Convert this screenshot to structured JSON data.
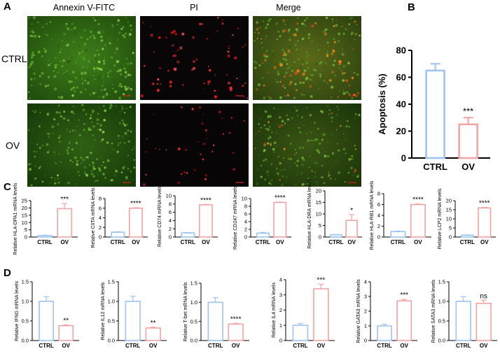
{
  "panel_labels": {
    "A": "A",
    "B": "B",
    "C": "C",
    "D": "D"
  },
  "micrographs": {
    "columns": [
      "Annexin V-FITC",
      "PI",
      "Merge"
    ],
    "rows": [
      "CTRL",
      "OV"
    ],
    "colors": {
      "green": "#2f6a12",
      "red": "#c8141e",
      "background": "#070707"
    }
  },
  "colors": {
    "ctrl": "#9cc3f2",
    "ov": "#f2a3a3",
    "axis": "#000000"
  },
  "chart_data": [
    {
      "id": "B",
      "type": "bar",
      "categories": [
        "CTRL",
        "OV"
      ],
      "values": [
        65,
        25
      ],
      "errors": [
        5,
        5
      ],
      "ylabel": "Apoptosis (%)",
      "ylim": [
        0,
        80
      ],
      "yticks": [
        0,
        20,
        40,
        60,
        80
      ],
      "significance": "***"
    },
    {
      "id": "C1",
      "type": "bar",
      "categories": [
        "CTRL",
        "OV"
      ],
      "values": [
        1,
        19.5
      ],
      "errors": [
        0.3,
        3.5
      ],
      "ylabel": "Relative HLA-DPA1 mRNA levels",
      "ylim": [
        0,
        25
      ],
      "yticks": [
        0,
        5,
        10,
        15,
        20,
        25
      ],
      "significance": "***"
    },
    {
      "id": "C2",
      "type": "bar",
      "categories": [
        "CTRL",
        "OV"
      ],
      "values": [
        1,
        6
      ],
      "errors": [
        0.1,
        0.1
      ],
      "ylabel": "Relative CIITA mRNA levels",
      "ylim": [
        0,
        8
      ],
      "yticks": [
        0,
        2,
        4,
        6,
        8
      ],
      "significance": "****"
    },
    {
      "id": "C3",
      "type": "bar",
      "categories": [
        "CTRL",
        "OV"
      ],
      "values": [
        1,
        7.8
      ],
      "errors": [
        0.1,
        0.1
      ],
      "ylabel": "Relative CD74 mRNA levels",
      "ylim": [
        0,
        10
      ],
      "yticks": [
        0,
        2,
        4,
        6,
        8,
        10
      ],
      "significance": "****"
    },
    {
      "id": "C4",
      "type": "bar",
      "categories": [
        "CTRL",
        "OV"
      ],
      "values": [
        1,
        9
      ],
      "errors": [
        0.2,
        0.1
      ],
      "ylabel": "Relative CD247 mRNA levels",
      "ylim": [
        0,
        10
      ],
      "yticks": [
        0,
        2,
        4,
        6,
        8,
        10
      ],
      "significance": "****"
    },
    {
      "id": "C5",
      "type": "bar",
      "categories": [
        "CTRL",
        "OV"
      ],
      "values": [
        1,
        7.2
      ],
      "errors": [
        0.1,
        2.5
      ],
      "ylabel": "Relative HLA-DRA mRNA levels",
      "ylim": [
        0,
        20
      ],
      "yticks": [
        0,
        5,
        10,
        15,
        20
      ],
      "significance": "*"
    },
    {
      "id": "C6",
      "type": "bar",
      "categories": [
        "CTRL",
        "OV"
      ],
      "values": [
        1,
        6
      ],
      "errors": [
        0.1,
        0.1
      ],
      "ylabel": "Relative HLA-RB1 mRNA levels",
      "ylim": [
        0,
        8
      ],
      "yticks": [
        0,
        2,
        4,
        6,
        8
      ],
      "significance": "****"
    },
    {
      "id": "C7",
      "type": "bar",
      "categories": [
        "CTRL",
        "OV"
      ],
      "values": [
        1,
        16
      ],
      "errors": [
        0.2,
        0.3
      ],
      "ylabel": "Relative LCP2 mRNA levels",
      "ylim": [
        0,
        20
      ],
      "yticks": [
        0,
        5,
        10,
        15,
        20
      ],
      "significance": "****"
    },
    {
      "id": "D1",
      "type": "bar",
      "categories": [
        "CTRL",
        "OV"
      ],
      "values": [
        1,
        0.38
      ],
      "errors": [
        0.12,
        0.02
      ],
      "ylabel": "Relative IFNG mRNA levels",
      "ylim": [
        0,
        1.5
      ],
      "yticks": [
        0.0,
        0.5,
        1.0,
        1.5
      ],
      "significance": "**"
    },
    {
      "id": "D2",
      "type": "bar",
      "categories": [
        "CTRL",
        "OV"
      ],
      "values": [
        1,
        0.32
      ],
      "errors": [
        0.13,
        0.02
      ],
      "ylabel": "Relative IL12 mRNA levels",
      "ylim": [
        0,
        1.5
      ],
      "yticks": [
        0.0,
        0.5,
        1.0,
        1.5
      ],
      "significance": "**"
    },
    {
      "id": "D3",
      "type": "bar",
      "categories": [
        "CTRL",
        "OV"
      ],
      "values": [
        1,
        0.43
      ],
      "errors": [
        0.12,
        0.02
      ],
      "ylabel": "Relative T-bet mRNA levels",
      "ylim": [
        0,
        1.5
      ],
      "yticks": [
        0.0,
        0.5,
        1.0,
        1.5
      ],
      "significance": "****"
    },
    {
      "id": "D4",
      "type": "bar",
      "categories": [
        "CTRL",
        "OV"
      ],
      "values": [
        1,
        3.4
      ],
      "errors": [
        0.12,
        0.3
      ],
      "ylabel": "Relative IL4 mRNA levels",
      "ylim": [
        0,
        4
      ],
      "yticks": [
        0,
        1,
        2,
        3,
        4
      ],
      "significance": "***"
    },
    {
      "id": "D5",
      "type": "bar",
      "categories": [
        "CTRL",
        "OV"
      ],
      "values": [
        1,
        2.7
      ],
      "errors": [
        0.1,
        0.1
      ],
      "ylabel": "Relative GATA3 mRNA levels",
      "ylim": [
        0,
        4
      ],
      "yticks": [
        0,
        1,
        2,
        3,
        4
      ],
      "significance": "***"
    },
    {
      "id": "D6",
      "type": "bar",
      "categories": [
        "CTRL",
        "OV"
      ],
      "values": [
        1,
        0.95
      ],
      "errors": [
        0.12,
        0.08
      ],
      "ylabel": "Relative SATA3 mRNA levels",
      "ylim": [
        0,
        1.5
      ],
      "yticks": [
        0.0,
        0.5,
        1.0,
        1.5
      ],
      "significance": "ns"
    }
  ]
}
